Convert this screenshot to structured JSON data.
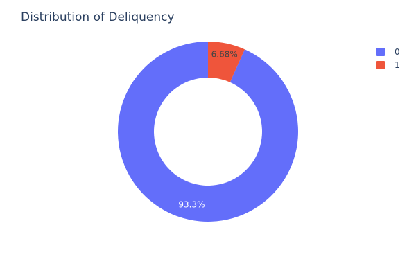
{
  "chart_data": {
    "type": "pie",
    "title": "Distribution of Deliquency",
    "hole": true,
    "categories": [
      "0",
      "1"
    ],
    "values": [
      93.32,
      6.68
    ],
    "slice_labels": [
      "93.3%",
      "6.68%"
    ],
    "colors": [
      "#636efa",
      "#ef553b"
    ],
    "label_colors": [
      "#ffffff",
      "#444444"
    ],
    "legend": {
      "position": "top-right",
      "entries": [
        "0",
        "1"
      ]
    }
  }
}
